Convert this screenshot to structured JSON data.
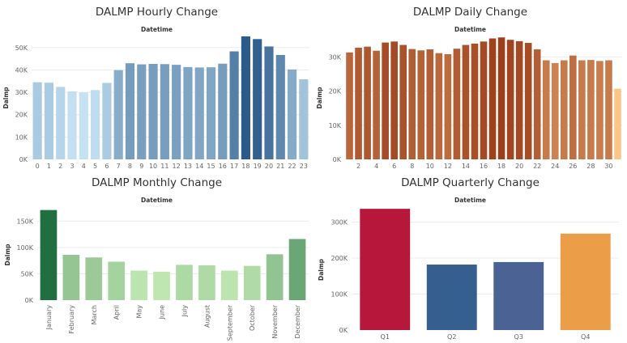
{
  "chart_data": [
    {
      "id": "hourly",
      "type": "bar",
      "title": "DALMP Hourly Change",
      "subtitle": "Datetime",
      "ylabel": "Dalmp",
      "ylim": [
        0,
        55000
      ],
      "yticks": [
        0,
        10000,
        20000,
        30000,
        40000,
        50000
      ],
      "ytick_labels": [
        "0K",
        "10K",
        "20K",
        "30K",
        "40K",
        "50K"
      ],
      "categories": [
        "0",
        "1",
        "2",
        "3",
        "4",
        "5",
        "6",
        "7",
        "8",
        "9",
        "10",
        "11",
        "12",
        "13",
        "14",
        "15",
        "16",
        "17",
        "18",
        "19",
        "20",
        "21",
        "22",
        "23"
      ],
      "values": [
        34500,
        34300,
        32400,
        30400,
        30000,
        31000,
        34200,
        39900,
        43000,
        42500,
        42700,
        42600,
        42300,
        41300,
        41100,
        41200,
        42800,
        48300,
        55000,
        53800,
        50500,
        46700,
        40200,
        35800
      ],
      "color_scale": [
        "#c5e2f4",
        "#2b5b8a"
      ],
      "grid": true
    },
    {
      "id": "daily",
      "type": "bar",
      "title": "DALMP Daily Change",
      "subtitle": "Datetime",
      "ylabel": "Dalmp",
      "ylim": [
        0,
        36000
      ],
      "yticks": [
        0,
        10000,
        20000,
        30000
      ],
      "ytick_labels": [
        "0K",
        "10K",
        "20K",
        "30K"
      ],
      "categories": [
        "1",
        "2",
        "3",
        "4",
        "5",
        "6",
        "7",
        "8",
        "9",
        "10",
        "11",
        "12",
        "13",
        "14",
        "15",
        "16",
        "17",
        "18",
        "19",
        "20",
        "21",
        "22",
        "23",
        "24",
        "25",
        "26",
        "27",
        "28",
        "29",
        "30",
        "31"
      ],
      "tick_labels": [
        "2",
        "4",
        "6",
        "8",
        "10",
        "12",
        "14",
        "16",
        "18",
        "20",
        "22",
        "24",
        "26",
        "28",
        "30"
      ],
      "values": [
        31300,
        32700,
        33000,
        31800,
        34200,
        34500,
        33500,
        32300,
        31900,
        32200,
        31100,
        30800,
        32400,
        33500,
        33900,
        34500,
        35400,
        35700,
        35000,
        34600,
        34100,
        32200,
        29000,
        28200,
        29000,
        30400,
        29000,
        29100,
        28800,
        29000,
        20700
      ],
      "color_scale": [
        "#fdc586",
        "#9c3f1b"
      ],
      "grid": true
    },
    {
      "id": "monthly",
      "type": "bar",
      "title": "DALMP Monthly Change",
      "subtitle": "Datetime",
      "ylabel": "Dalmp",
      "ylim": [
        0,
        172000
      ],
      "yticks": [
        0,
        50000,
        100000,
        150000
      ],
      "ytick_labels": [
        "0K",
        "50K",
        "100K",
        "150K"
      ],
      "categories": [
        "January",
        "February",
        "March",
        "April",
        "May",
        "June",
        "July",
        "August",
        "September",
        "October",
        "November",
        "December"
      ],
      "values": [
        171000,
        86000,
        81000,
        73000,
        56000,
        54000,
        67000,
        66000,
        56000,
        65000,
        87000,
        116000
      ],
      "color_scale": [
        "#bfe6b1",
        "#216e40"
      ],
      "grid": true
    },
    {
      "id": "quarterly",
      "type": "bar",
      "title": "DALMP Quarterly Change",
      "subtitle": "Datetime",
      "ylabel": "Dalmp",
      "ylim": [
        0,
        335000
      ],
      "yticks": [
        0,
        100000,
        200000,
        300000
      ],
      "ytick_labels": [
        "0K",
        "100K",
        "200K",
        "300K"
      ],
      "categories": [
        "Q1",
        "Q2",
        "Q3",
        "Q4"
      ],
      "values": [
        337000,
        182000,
        189000,
        268000
      ],
      "colors": [
        "#b8173c",
        "#345f8e",
        "#4a6394",
        "#eb9d47"
      ],
      "grid": true
    }
  ]
}
